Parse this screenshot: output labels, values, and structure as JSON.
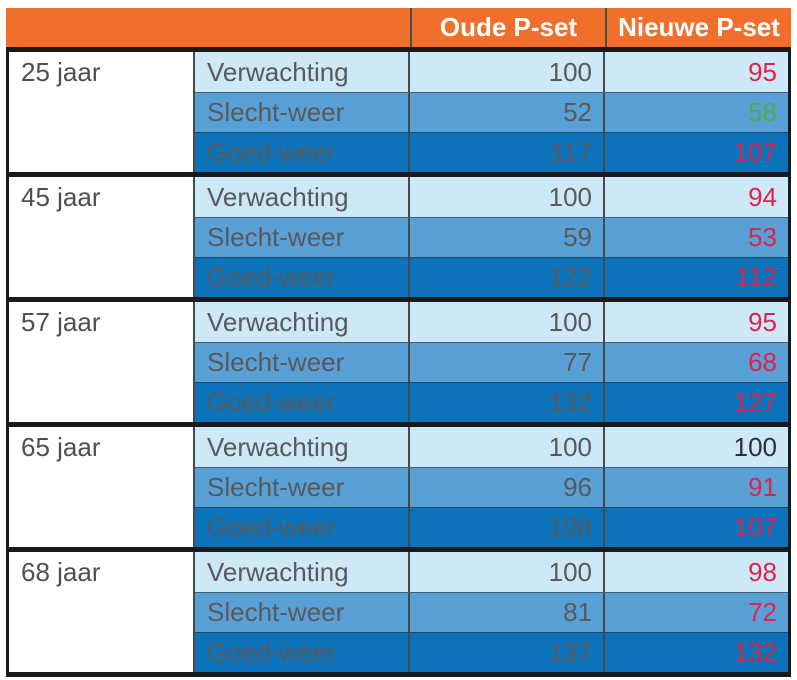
{
  "table": {
    "header": {
      "old_label": "Oude P-set",
      "new_label": "Nieuwe P-set"
    },
    "groups": [
      {
        "age": "25 jaar",
        "rows": [
          {
            "label": "Verwachting",
            "old": "100",
            "new": "95",
            "new_color": "red"
          },
          {
            "label": "Slecht-weer",
            "old": "52",
            "new": "58",
            "new_color": "green"
          },
          {
            "label": "Goed-weer",
            "old": "117",
            "new": "107",
            "new_color": "red"
          }
        ]
      },
      {
        "age": "45 jaar",
        "rows": [
          {
            "label": "Verwachting",
            "old": "100",
            "new": "94",
            "new_color": "red"
          },
          {
            "label": "Slecht-weer",
            "old": "59",
            "new": "53",
            "new_color": "red"
          },
          {
            "label": "Goed-weer",
            "old": "122",
            "new": "112",
            "new_color": "red"
          }
        ]
      },
      {
        "age": "57 jaar",
        "rows": [
          {
            "label": "Verwachting",
            "old": "100",
            "new": "95",
            "new_color": "red"
          },
          {
            "label": "Slecht-weer",
            "old": "77",
            "new": "68",
            "new_color": "red"
          },
          {
            "label": "Goed-weer",
            "old": "132",
            "new": "127",
            "new_color": "red"
          }
        ]
      },
      {
        "age": "65 jaar",
        "rows": [
          {
            "label": "Verwachting",
            "old": "100",
            "new": "100",
            "new_color": "dark"
          },
          {
            "label": "Slecht-weer",
            "old": "96",
            "new": "91",
            "new_color": "red"
          },
          {
            "label": "Goed-weer",
            "old": "108",
            "new": "107",
            "new_color": "red"
          }
        ]
      },
      {
        "age": "68 jaar",
        "rows": [
          {
            "label": "Verwachting",
            "old": "100",
            "new": "98",
            "new_color": "red"
          },
          {
            "label": "Slecht-weer",
            "old": "81",
            "new": "72",
            "new_color": "red"
          },
          {
            "label": "Goed-weer",
            "old": "137",
            "new": "132",
            "new_color": "red"
          }
        ]
      }
    ]
  },
  "colors": {
    "header_bg": "#F0702B",
    "row_verwachting_bg": "#CDE8F7",
    "row_slecht_weer_bg": "#59A0D6",
    "row_goed_weer_bg": "#0C72B9",
    "label_text": "#58595B",
    "value_red": "#E0224A",
    "value_green": "#4BAE4F",
    "border_black": "#1A1A1C"
  },
  "chart_data": {
    "type": "table",
    "columns": [
      "",
      "",
      "Oude P-set",
      "Nieuwe P-set"
    ],
    "rows": [
      [
        "25 jaar",
        "Verwachting",
        100,
        95
      ],
      [
        "25 jaar",
        "Slecht-weer",
        52,
        58
      ],
      [
        "25 jaar",
        "Goed-weer",
        117,
        107
      ],
      [
        "45 jaar",
        "Verwachting",
        100,
        94
      ],
      [
        "45 jaar",
        "Slecht-weer",
        59,
        53
      ],
      [
        "45 jaar",
        "Goed-weer",
        122,
        112
      ],
      [
        "57 jaar",
        "Verwachting",
        100,
        95
      ],
      [
        "57 jaar",
        "Slecht-weer",
        77,
        68
      ],
      [
        "57 jaar",
        "Goed-weer",
        132,
        127
      ],
      [
        "65 jaar",
        "Verwachting",
        100,
        100
      ],
      [
        "65 jaar",
        "Slecht-weer",
        96,
        91
      ],
      [
        "65 jaar",
        "Goed-weer",
        108,
        107
      ],
      [
        "68 jaar",
        "Verwachting",
        100,
        98
      ],
      [
        "68 jaar",
        "Slecht-weer",
        81,
        72
      ],
      [
        "68 jaar",
        "Goed-weer",
        137,
        132
      ]
    ],
    "notes_layout": "5 age groups x 3 scenario rows; row shading light/mid/dark blue; new-set values highlighted red (worse), green (better), black (equal)"
  }
}
